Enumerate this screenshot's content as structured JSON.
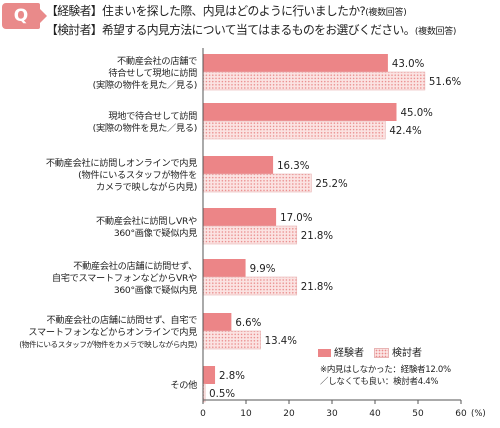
{
  "question": {
    "badge": "Q",
    "line1": "【経験者】住まいを探した際、内見はどのように行いましたか?",
    "line1_note": "(複数回答)",
    "line2": "【検討者】希望する内見方法について当てはまるものをお選びください。",
    "line2_note": "(複数回答)"
  },
  "legend": {
    "experienced": "経験者",
    "considering": "検討者"
  },
  "footnote": {
    "line1": "※内見はしなかった：経験者12.0%",
    "line2": "／しなくても良い：検討者4.4%"
  },
  "colors": {
    "experienced": "#ec8587",
    "considering_fill": "#fbe3e2",
    "considering_dot": "#e98a8a",
    "axis": "#555555"
  },
  "chart_data": {
    "type": "bar",
    "orientation": "horizontal",
    "categories": [
      [
        "不動産会社の店舗で",
        "待合せして現地に訪問",
        "(実際の物件を見た／見る)"
      ],
      [
        "現地で待合せして訪問",
        "(実際の物件を見た／見る)"
      ],
      [
        "不動産会社に訪問しオンラインで内見",
        "(物件にいるスタッフが物件を",
        "カメラで映しながら内見)"
      ],
      [
        "不動産会社に訪問しVRや",
        "360°画像で疑似内見"
      ],
      [
        "不動産会社の店舗に訪問せず、",
        "自宅でスマートフォンなどからVRや",
        "360°画像で疑似内見"
      ],
      [
        "不動産会社の店舗に訪問せず、自宅で",
        "スマートフォンなどからオンラインで内見",
        "(物件にいるスタッフが物件をカメラで映しながら内見)"
      ],
      [
        "その他"
      ]
    ],
    "series": [
      {
        "name": "経験者",
        "values": [
          43.0,
          45.0,
          16.3,
          17.0,
          9.9,
          6.6,
          2.8
        ]
      },
      {
        "name": "検討者",
        "values": [
          51.6,
          42.4,
          25.2,
          21.8,
          21.8,
          13.4,
          0.5
        ]
      }
    ],
    "value_labels": [
      [
        "43.0%",
        "45.0%",
        "16.3%",
        "17.0%",
        "9.9%",
        "6.6%",
        "2.8%"
      ],
      [
        "51.6%",
        "42.4%",
        "25.2%",
        "21.8%",
        "21.8%",
        "13.4%",
        "0.5%"
      ]
    ],
    "x_ticks": [
      "0",
      "10",
      "20",
      "30",
      "40",
      "50",
      "60"
    ],
    "x_unit": "(%)",
    "xlim": [
      0,
      60
    ],
    "grid": false,
    "legend_position": "bottom-right"
  }
}
